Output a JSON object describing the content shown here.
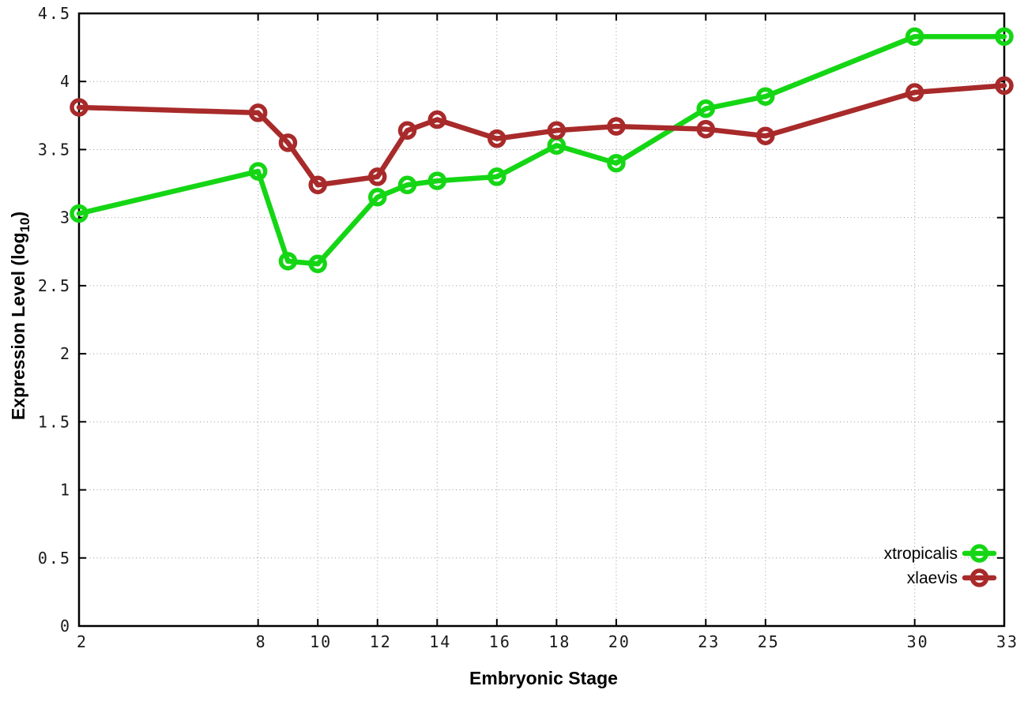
{
  "chart_data": {
    "type": "line",
    "title": "",
    "xlabel": "Embryonic Stage",
    "ylabel": "Expression Level (log10)",
    "ylabel_parts": {
      "pre": "Expression Level (log",
      "sub": "10",
      "post": ")"
    },
    "xlim": [
      2,
      33
    ],
    "ylim": [
      0,
      4.5
    ],
    "x_ticks": [
      2,
      8,
      10,
      12,
      14,
      16,
      18,
      20,
      23,
      25,
      30,
      33
    ],
    "x_tick_labels": [
      "2",
      "8",
      "10",
      "12",
      "14",
      "16",
      "18",
      "20",
      "23",
      "25",
      "30",
      "33"
    ],
    "y_ticks": [
      0,
      0.5,
      1,
      1.5,
      2,
      2.5,
      3,
      3.5,
      4,
      4.5
    ],
    "y_tick_labels": [
      "0",
      "0.5",
      "1",
      "1.5",
      "2",
      "2.5",
      "3",
      "3.5",
      "4",
      "4.5"
    ],
    "grid": true,
    "legend_position": "bottom-right",
    "x": [
      2,
      8,
      9,
      10,
      12,
      13,
      14,
      16,
      18,
      20,
      23,
      25,
      30,
      33
    ],
    "series": [
      {
        "name": "xtropicalis",
        "color": "#15d615",
        "values": [
          3.03,
          3.34,
          2.68,
          2.66,
          3.15,
          3.24,
          3.27,
          3.3,
          3.53,
          3.4,
          3.8,
          3.89,
          4.33,
          4.33
        ]
      },
      {
        "name": "xlaevis",
        "color": "#a82a2a",
        "values": [
          3.81,
          3.77,
          3.55,
          3.24,
          3.3,
          3.64,
          3.72,
          3.58,
          3.64,
          3.67,
          3.65,
          3.6,
          3.92,
          3.97
        ]
      }
    ],
    "colors": {
      "axis": "#000000",
      "grid": "#9a9a9a",
      "tick_text": "#1a1a1a",
      "background": "#ffffff"
    }
  }
}
